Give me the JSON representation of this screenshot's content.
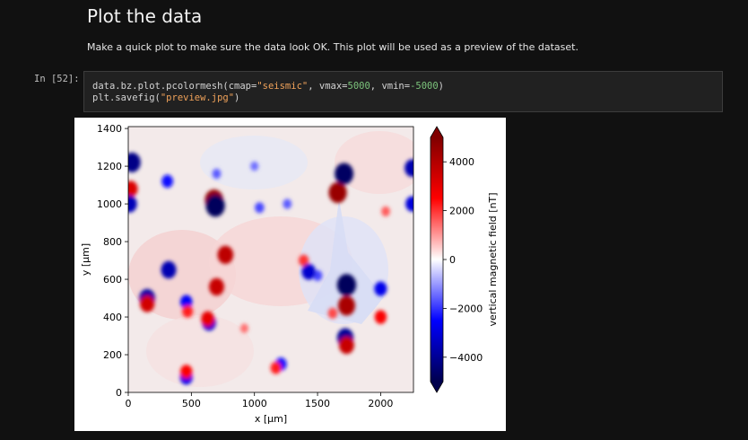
{
  "notebook": {
    "heading": "Plot the data",
    "paragraph": "Make a quick plot to make sure the data look OK. This plot will be used as a preview of the dataset.",
    "prompt": "In [52]:",
    "code": {
      "line1": {
        "a": "data.bz.plot.pcolormesh(cmap=",
        "cmap": "\"seismic\"",
        "b": ", vmax=",
        "vmax": "5000",
        "c": ", vmin=",
        "vmin": "-5000",
        "d": ")"
      },
      "line2": {
        "a": "plt.savefig(",
        "file": "\"preview.jpg\"",
        "b": ")"
      }
    }
  },
  "chart_data": {
    "type": "heatmap",
    "title": "",
    "xlabel": "x [µm]",
    "ylabel": "y [µm]",
    "colorbar_label": "vertical magnetic field [nT]",
    "colormap": "seismic",
    "vmin": -5000,
    "vmax": 5000,
    "xlim": [
      0,
      2260
    ],
    "ylim": [
      0,
      1410
    ],
    "xticks": [
      0,
      500,
      1000,
      1500,
      2000
    ],
    "yticks": [
      0,
      200,
      400,
      600,
      800,
      1000,
      1200,
      1400
    ],
    "colorbar_ticks": [
      -4000,
      -2000,
      0,
      2000,
      4000
    ],
    "colorbar_tick_labels": [
      "−4000",
      "−2000",
      "0",
      "2000",
      "4000"
    ],
    "colorbar_extend": "both",
    "anomalies": [
      {
        "x": 30,
        "y": 1220,
        "value": -4200
      },
      {
        "x": 20,
        "y": 1080,
        "value": 3200
      },
      {
        "x": 10,
        "y": 1000,
        "value": -3500
      },
      {
        "x": 680,
        "y": 1020,
        "value": 4600
      },
      {
        "x": 690,
        "y": 990,
        "value": -4800
      },
      {
        "x": 1660,
        "y": 1060,
        "value": 4500
      },
      {
        "x": 1710,
        "y": 1160,
        "value": -4700
      },
      {
        "x": 1730,
        "y": 570,
        "value": -4800
      },
      {
        "x": 1730,
        "y": 460,
        "value": 4200
      },
      {
        "x": 2000,
        "y": 550,
        "value": -2800
      },
      {
        "x": 2000,
        "y": 400,
        "value": 2600
      },
      {
        "x": 2250,
        "y": 1190,
        "value": -3600
      },
      {
        "x": 2250,
        "y": 1000,
        "value": -3000
      },
      {
        "x": 1720,
        "y": 290,
        "value": -4000
      },
      {
        "x": 1730,
        "y": 250,
        "value": 3600
      },
      {
        "x": 770,
        "y": 730,
        "value": 3800
      },
      {
        "x": 1390,
        "y": 700,
        "value": 2000
      },
      {
        "x": 1500,
        "y": 620,
        "value": -1800
      },
      {
        "x": 920,
        "y": 340,
        "value": 1400
      },
      {
        "x": 640,
        "y": 370,
        "value": -3200
      },
      {
        "x": 630,
        "y": 390,
        "value": 3000
      },
      {
        "x": 320,
        "y": 650,
        "value": -3600
      },
      {
        "x": 150,
        "y": 500,
        "value": -3800
      },
      {
        "x": 150,
        "y": 470,
        "value": 3400
      },
      {
        "x": 700,
        "y": 560,
        "value": 3600
      },
      {
        "x": 460,
        "y": 480,
        "value": -2600
      },
      {
        "x": 470,
        "y": 430,
        "value": 2200
      },
      {
        "x": 1040,
        "y": 980,
        "value": -1800
      },
      {
        "x": 1620,
        "y": 420,
        "value": 1800
      },
      {
        "x": 1210,
        "y": 150,
        "value": -2400
      },
      {
        "x": 1170,
        "y": 130,
        "value": 2200
      },
      {
        "x": 460,
        "y": 80,
        "value": -2800
      },
      {
        "x": 460,
        "y": 110,
        "value": 2600
      },
      {
        "x": 1430,
        "y": 640,
        "value": -3200
      },
      {
        "x": 1260,
        "y": 1000,
        "value": -1600
      },
      {
        "x": 2040,
        "y": 960,
        "value": 1600
      },
      {
        "x": 310,
        "y": 1120,
        "value": -2400
      },
      {
        "x": 1000,
        "y": 1200,
        "value": -1400
      },
      {
        "x": 700,
        "y": 1160,
        "value": -1600
      }
    ]
  }
}
